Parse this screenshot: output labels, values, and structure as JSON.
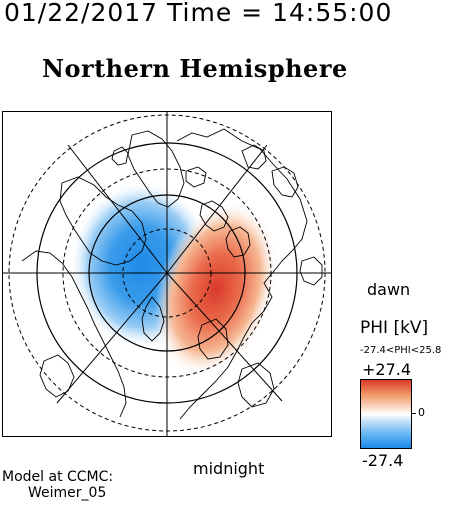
{
  "header": {
    "date": "01/22/2017",
    "time_label": "Time =",
    "time": "14:55:00"
  },
  "map": {
    "title": "Northern Hemisphere",
    "label_dawn": "dawn",
    "label_midnight": "midnight"
  },
  "colorbar": {
    "title": "PHI [kV]",
    "range_text": "-27.4<PHI<25.8",
    "max_label": "+27.4",
    "min_label": "-27.4",
    "zero_label": "0",
    "colors": {
      "positive": "#d93a2b",
      "zero": "#ffffff",
      "negative": "#1d8ae8"
    }
  },
  "credit": {
    "line1": "Model at CCMC:",
    "line2": "Weimer_05"
  }
}
